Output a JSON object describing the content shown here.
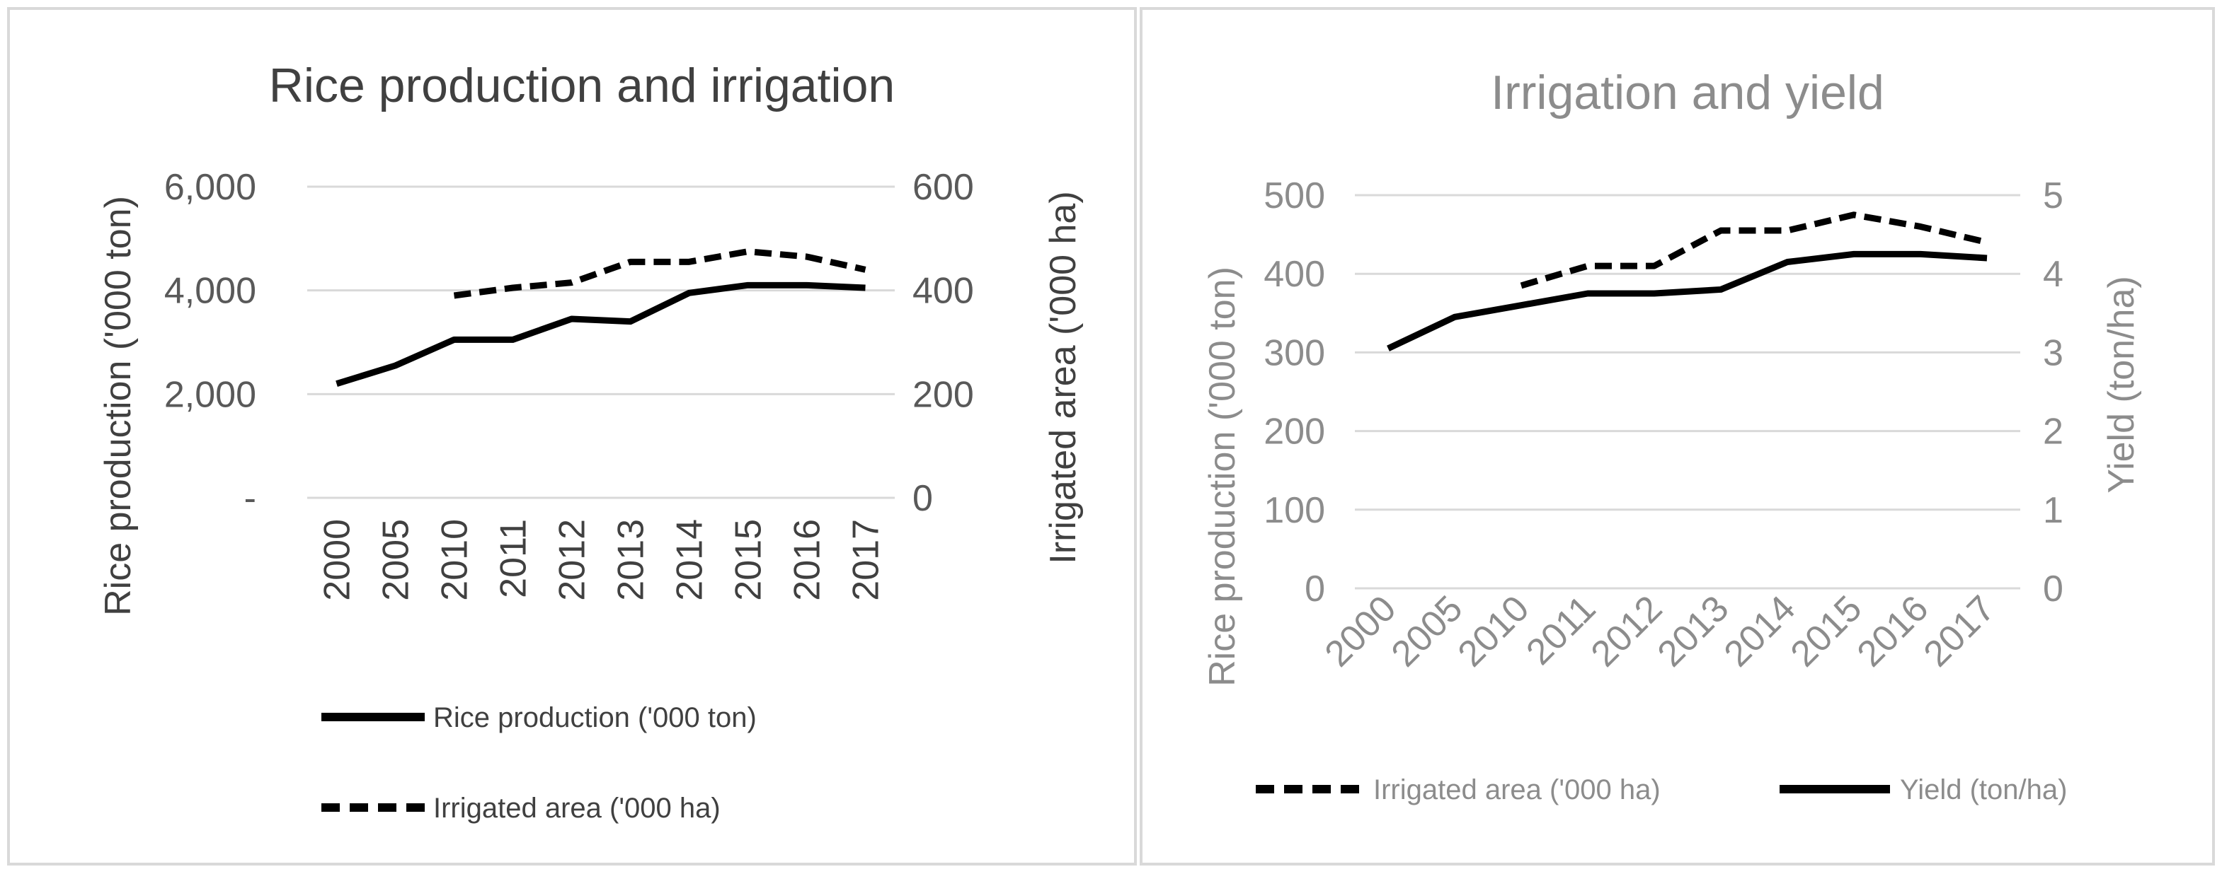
{
  "chart_data": [
    {
      "type": "line",
      "title": "Rice production  and irrigation",
      "categories": [
        "2000",
        "2005",
        "2010",
        "2011",
        "2012",
        "2013",
        "2014",
        "2015",
        "2016",
        "2017"
      ],
      "series": [
        {
          "name": "Rice production  ('000 ton)",
          "axis": "left",
          "style": "solid",
          "values": [
            2200,
            2550,
            3050,
            3050,
            3450,
            3400,
            3950,
            4100,
            4100,
            4050
          ]
        },
        {
          "name": "Irrigated area ('000 ha)",
          "axis": "right",
          "style": "dashed",
          "values": [
            null,
            null,
            390,
            405,
            415,
            455,
            455,
            475,
            465,
            440
          ]
        }
      ],
      "ylabel": "Rice production  ('000 ton)",
      "y2label": "Irrigated area ('000 ha)",
      "yticks": [
        "-",
        "2,000",
        "4,000",
        "6,000"
      ],
      "ylim": [
        0,
        6000
      ],
      "y2ticks": [
        "0",
        "200",
        "400",
        "600"
      ],
      "y2lim": [
        0,
        600
      ],
      "legend": "bottom",
      "grid": true
    },
    {
      "type": "line",
      "title": "Irrigation and yield",
      "categories": [
        "2000",
        "2005",
        "2010",
        "2011",
        "2012",
        "2013",
        "2014",
        "2015",
        "2016",
        "2017"
      ],
      "series": [
        {
          "name": "Irrigated area ('000 ha)",
          "axis": "left",
          "style": "dashed",
          "values": [
            null,
            null,
            385,
            410,
            410,
            455,
            455,
            475,
            460,
            440
          ]
        },
        {
          "name": "Yield (ton/ha)",
          "axis": "right",
          "style": "solid",
          "values": [
            3.05,
            3.45,
            3.6,
            3.75,
            3.75,
            3.8,
            4.15,
            4.25,
            4.25,
            4.2
          ]
        }
      ],
      "ylabel": "Rice production  ('000 ton)",
      "y2label": "Yield (ton/ha)",
      "yticks": [
        "0",
        "100",
        "200",
        "300",
        "400",
        "500"
      ],
      "ylim": [
        0,
        500
      ],
      "y2ticks": [
        "0",
        "1",
        "2",
        "3",
        "4",
        "5"
      ],
      "y2lim": [
        0,
        5
      ],
      "legend": "bottom",
      "grid": true
    }
  ],
  "colors": {
    "line": "#000000",
    "grid": "#d9d9d9",
    "text_left": "#595959",
    "text_right": "#8c8c8c"
  }
}
